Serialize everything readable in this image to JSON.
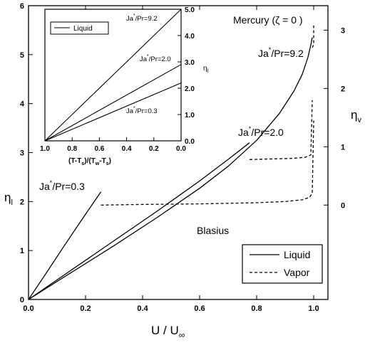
{
  "chart_data": [
    {
      "type": "line",
      "title": "",
      "annotations": {
        "material": "Mercury (ζ = 0 )",
        "blasius": "Blasius",
        "ja_03": "Ja*/Pr=0.3",
        "ja_20": "Ja*/Pr=2.0",
        "ja_92": "Ja*/Pr=9.2"
      },
      "xlabel": "U / U∞",
      "ylabel_left": "ηl",
      "ylabel_right": "ηv",
      "xlim": [
        0.0,
        1.05
      ],
      "ylim_left": [
        0,
        6
      ],
      "ylim_right": [
        -1.62,
        3.42
      ],
      "x_ticks": [
        "0.0",
        "0.2",
        "0.4",
        "0.6",
        "0.8",
        "1.0"
      ],
      "y_ticks_left": [
        "0",
        "1",
        "2",
        "3",
        "4",
        "5",
        "6"
      ],
      "y_ticks_right": [
        "0",
        "1",
        "2",
        "3"
      ],
      "legend": {
        "placement": "bottom-right",
        "entries": [
          {
            "label": "Liquid",
            "style": "solid"
          },
          {
            "label": "Vapor",
            "style": "dashed"
          }
        ]
      },
      "grid": false,
      "series": [
        {
          "name": "Liquid",
          "group": "Ja*/Pr=0.3",
          "style": "solid",
          "axis": "left",
          "x": [
            0.0,
            0.06,
            0.12,
            0.18,
            0.254
          ],
          "y": [
            0.0,
            0.52,
            1.05,
            1.57,
            2.2
          ]
        },
        {
          "name": "Vapor",
          "group": "Ja*/Pr=0.3",
          "style": "dashed",
          "axis": "right",
          "x": [
            0.254,
            0.4,
            0.6,
            0.8,
            0.9,
            0.96,
            0.985,
            0.995,
            1.0
          ],
          "y": [
            0.0,
            0.01,
            0.02,
            0.04,
            0.06,
            0.09,
            0.13,
            0.2,
            1.45
          ]
        },
        {
          "name": "Liquid",
          "group": "Ja*/Pr=2.0",
          "style": "solid",
          "axis": "left",
          "x": [
            0.0,
            0.15,
            0.3,
            0.45,
            0.6,
            0.7,
            0.775
          ],
          "y": [
            0.0,
            0.6,
            1.2,
            1.8,
            2.42,
            2.86,
            3.2
          ]
        },
        {
          "name": "Vapor",
          "group": "Ja*/Pr=2.0",
          "style": "dashed",
          "axis": "right",
          "x": [
            0.775,
            0.85,
            0.92,
            0.97,
            0.99,
            0.995
          ],
          "y": [
            0.78,
            0.79,
            0.8,
            0.82,
            0.86,
            1.8
          ]
        },
        {
          "name": "Liquid",
          "group": "Ja*/Pr=9.2",
          "style": "solid",
          "axis": "left",
          "x": [
            0.0,
            0.15,
            0.3,
            0.45,
            0.6,
            0.7,
            0.8,
            0.88,
            0.93,
            0.96,
            0.98,
            0.99,
            0.995
          ],
          "y": [
            0.0,
            0.55,
            1.1,
            1.67,
            2.27,
            2.72,
            3.25,
            3.8,
            4.25,
            4.6,
            4.95,
            5.2,
            5.35
          ]
        },
        {
          "name": "Vapor",
          "group": "Ja*/Pr=9.2",
          "style": "dashed",
          "axis": "right",
          "x": [
            0.995,
            1.0,
            1.0
          ],
          "y": [
            2.7,
            2.75,
            3.08
          ]
        }
      ]
    },
    {
      "type": "line",
      "title": "",
      "xlabel": "(T-Ts)/(Tw-Ts)",
      "ylabel_right": "ηl",
      "xlim": [
        1.0,
        0.0
      ],
      "ylim_right": [
        0.0,
        5.0
      ],
      "x_ticks": [
        "1.0",
        "0.8",
        "0.6",
        "0.4",
        "0.2",
        "0.0"
      ],
      "y_ticks_right": [
        "0.0",
        "1.0",
        "2.0",
        "3.0",
        "4.0",
        "5.0"
      ],
      "legend": {
        "placement": "top-left",
        "entries": [
          {
            "label": "Liquid",
            "style": "solid"
          }
        ]
      },
      "annotations": {
        "ja_92": "Ja*/Pr=9.2",
        "ja_20": "Ja*/Pr=2.0",
        "ja_03": "Ja*/Pr=0.3"
      },
      "series": [
        {
          "name": "Liquid",
          "group": "Ja*/Pr=9.2",
          "style": "solid",
          "x": [
            1.0,
            0.0
          ],
          "y": [
            0.0,
            5.0
          ]
        },
        {
          "name": "Liquid",
          "group": "Ja*/Pr=2.0",
          "style": "solid",
          "x": [
            1.0,
            0.0
          ],
          "y": [
            0.0,
            2.9
          ]
        },
        {
          "name": "Liquid",
          "group": "Ja*/Pr=0.3",
          "style": "solid",
          "x": [
            1.0,
            0.0
          ],
          "y": [
            0.0,
            2.2
          ]
        }
      ]
    }
  ]
}
